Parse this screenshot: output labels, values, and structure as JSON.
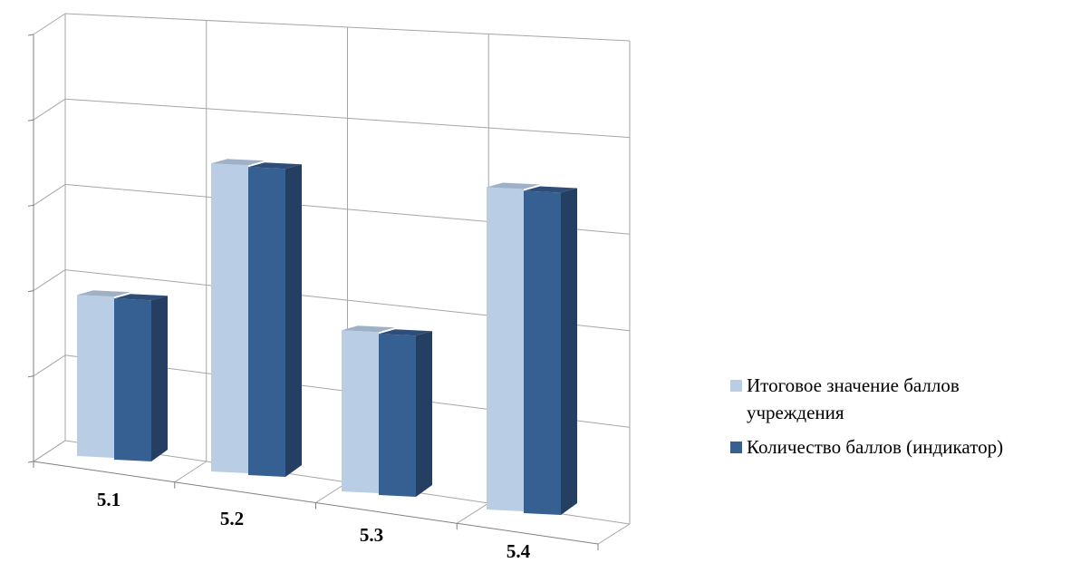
{
  "colors": {
    "series_1": "#b9cde5",
    "series_1_top": "#9fb1c7",
    "series_1_side": "#a3b7d0",
    "series_2": "#376092",
    "series_2_top": "#2e4e78",
    "series_2_side": "#243f62",
    "grid": "#a6a6a6"
  },
  "chart_data": {
    "type": "bar",
    "categories": [
      "5.1",
      "5.2",
      "5.3",
      "5.4"
    ],
    "series": [
      {
        "name": "Итоговое значение баллов учреждения",
        "values": [
          2.25,
          4.3,
          2.25,
          4.5
        ]
      },
      {
        "name": "Количество баллов (индикатор)",
        "values": [
          2.25,
          4.3,
          2.25,
          4.5
        ]
      }
    ],
    "title": "",
    "xlabel": "",
    "ylabel": "",
    "ylim": [
      0,
      5
    ],
    "grid": true,
    "legend_position": "right"
  }
}
